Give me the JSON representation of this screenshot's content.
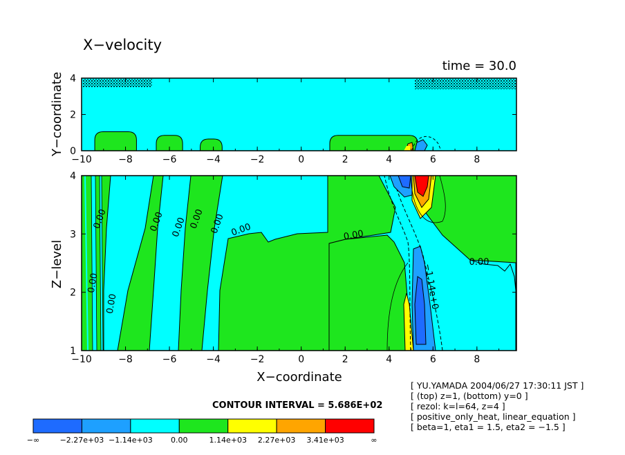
{
  "chart_data": [
    {
      "type": "heatmap",
      "panel": "top",
      "title": "X−velocity",
      "time_label": "time = 30.0",
      "ylabel": "Y−coordinate",
      "xlabel": "",
      "xlim": [
        -10,
        9.8
      ],
      "ylim": [
        0,
        4
      ],
      "x_ticks": [
        -10,
        -8,
        -6,
        -4,
        -2,
        0,
        2,
        4,
        6,
        8
      ],
      "x_tick_labels": [
        "−10",
        "−8",
        "−6",
        "−4",
        "−2",
        "0",
        "2",
        "4",
        "6",
        "8"
      ],
      "y_ticks": [
        0,
        2,
        4
      ],
      "y_tick_labels": [
        "0",
        "2",
        "4"
      ],
      "background_level": "-1.14e+03 to 0.00",
      "green_blobs": [
        {
          "x0": -9.4,
          "x1": -7.5,
          "ymax": 1.05
        },
        {
          "x0": -6.6,
          "x1": -5.4,
          "ymax": 0.85
        },
        {
          "x0": -4.6,
          "x1": -3.6,
          "ymax": 0.65
        },
        {
          "x0": 1.3,
          "x1": 5.3,
          "ymax": 0.85
        }
      ]
    },
    {
      "type": "heatmap",
      "panel": "bottom",
      "ylabel": "Z−level",
      "xlabel": "X−coordinate",
      "xlim": [
        -10,
        9.8
      ],
      "ylim": [
        1,
        4
      ],
      "x_ticks": [
        -10,
        -8,
        -6,
        -4,
        -2,
        0,
        2,
        4,
        6,
        8
      ],
      "x_tick_labels": [
        "−10",
        "−8",
        "−6",
        "−4",
        "−2",
        "0",
        "2",
        "4",
        "6",
        "8"
      ],
      "y_ticks": [
        1,
        2,
        3,
        4
      ],
      "y_tick_labels": [
        "1",
        "2",
        "3",
        "4"
      ],
      "contour_labels": [
        "0.00",
        "0.00",
        "0.00",
        "0.00",
        "0.00",
        "0.00",
        "0.00",
        "0.00",
        "0.00",
        "0.00",
        "−1.14e+0"
      ],
      "positive_core": {
        "x": 5.6,
        "z": 3.8,
        "max_level": "3.41e+03 to ∞"
      },
      "negative_core": {
        "x": 5.8,
        "z": 1.8,
        "min_level": "−∞ to −2.27e+03"
      }
    }
  ],
  "contour_interval": "CONTOUR INTERVAL = 5.686E+02",
  "colorbar": {
    "colors": [
      "#1e6bff",
      "#1ea0ff",
      "#00ffff",
      "#1ee61e",
      "#ffff00",
      "#ffa500",
      "#ff0000"
    ],
    "labels": [
      "−∞",
      "−2.27e+03",
      "−1.14e+03",
      "0.00",
      "1.14e+03",
      "2.27e+03",
      "3.41e+03",
      "∞"
    ]
  },
  "info_lines": [
    "[ YU.YAMADA 2004/06/27 17:30:11 JST ]",
    "[ (top) z=1, (bottom) y=0 ]",
    "[ rezol: k=l=64, z=4 ]",
    "[ positive_only_heat, linear_equation ]",
    "[ beta=1, eta1 = 1.5, eta2 = −1.5 ]"
  ]
}
